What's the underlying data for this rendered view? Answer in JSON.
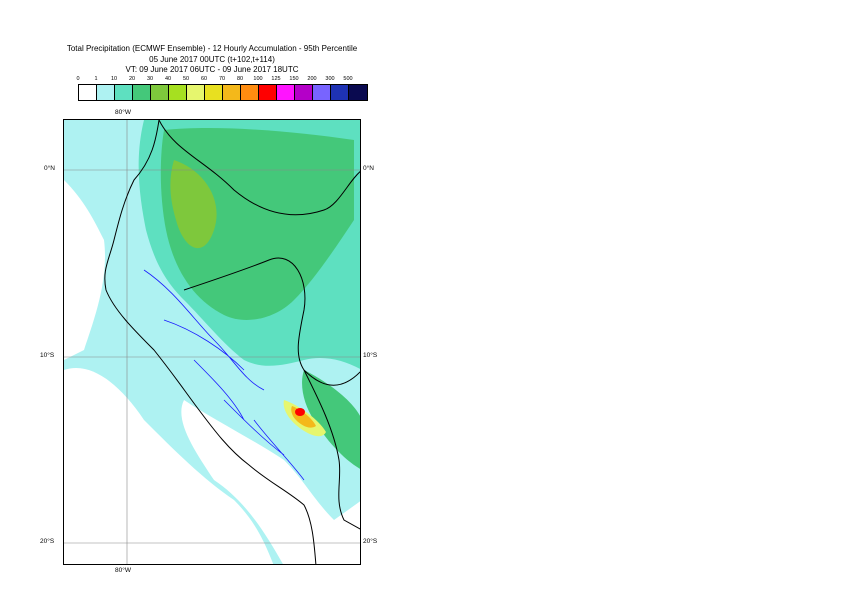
{
  "title": {
    "line1": "Total Precipitation (ECMWF Ensemble) - 12 Hourly Accumulation - 95th Percentile",
    "line2": "05 June 2017 00UTC (t+102,t+114)",
    "line3": "VT: 09 June 2017 06UTC - 09 June 2017 18UTC"
  },
  "legend": {
    "ticks": [
      "0",
      "1",
      "10",
      "20",
      "30",
      "40",
      "50",
      "60",
      "70",
      "80",
      "100",
      "125",
      "150",
      "200",
      "300",
      "500"
    ],
    "colors": [
      "#ffffff",
      "#aef2f2",
      "#5ee0c0",
      "#44c87a",
      "#7ec83c",
      "#a6e020",
      "#e6f66e",
      "#e8e020",
      "#f4b81a",
      "#ff8c10",
      "#ff0000",
      "#ff14ff",
      "#b400c8",
      "#7864ff",
      "#1e32b4",
      "#0a0a50"
    ]
  },
  "axes": {
    "lon_top": "80°W",
    "lon_bottom": "80°W",
    "lat_left": [
      "0°N",
      "10°S",
      "20°S"
    ],
    "lat_right": [
      "0°N",
      "10°S",
      "20°S"
    ]
  }
}
